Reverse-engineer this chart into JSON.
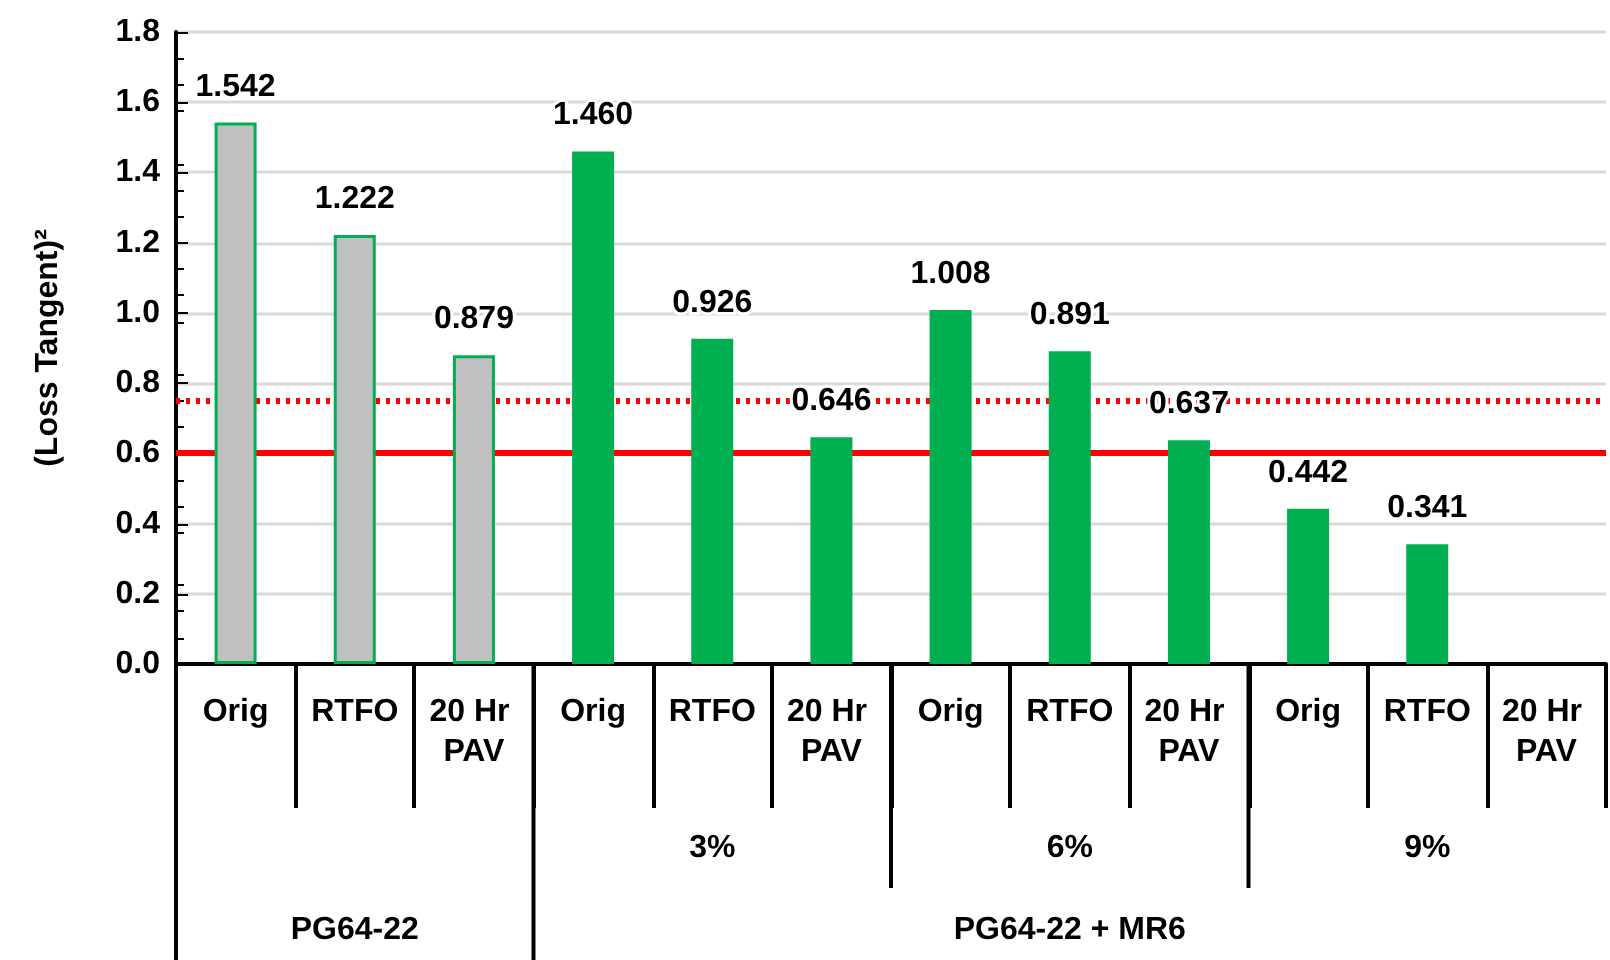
{
  "chart_data": {
    "type": "bar",
    "ylabel": "(Loss Tangent)²",
    "categories": [
      "Orig",
      "RTFO",
      "20 Hr PAV",
      "Orig",
      "RTFO",
      "20 Hr PAV",
      "Orig",
      "RTFO",
      "20 Hr PAV",
      "Orig",
      "RTFO",
      "20 Hr PAV"
    ],
    "values": [
      1.542,
      1.222,
      0.879,
      1.46,
      0.926,
      0.646,
      1.008,
      0.891,
      0.637,
      0.442,
      0.341,
      null
    ],
    "colors": [
      "#c0c0c0",
      "#c0c0c0",
      "#c0c0c0",
      "#00b050",
      "#00b050",
      "#00b050",
      "#00b050",
      "#00b050",
      "#00b050",
      "#00b050",
      "#00b050",
      "#00b050"
    ],
    "value_labels": [
      "1.542",
      "1.222",
      "0.879",
      "1.460",
      "0.926",
      "0.646",
      "1.008",
      "0.891",
      "0.637",
      "0.442",
      "0.341",
      null
    ],
    "ylim": [
      0,
      1.8
    ],
    "yticks": [
      {
        "value": 0,
        "label": "0.0"
      },
      {
        "value": 0.2,
        "label": "0.2"
      },
      {
        "value": 0.4,
        "label": "0.4"
      },
      {
        "value": 0.6,
        "label": "0.6"
      },
      {
        "value": 0.8,
        "label": "0.8"
      },
      {
        "value": 1,
        "label": "1.0"
      },
      {
        "value": 1.2,
        "label": "1.2"
      },
      {
        "value": 1.4,
        "label": "1.4"
      },
      {
        "value": 1.6,
        "label": "1.6"
      },
      {
        "value": 1.8,
        "label": "1.8"
      }
    ],
    "grid": "y",
    "ref_lines": [
      {
        "axis": "y",
        "value": 0.6,
        "color": "#ff0000",
        "line_style": "solid"
      },
      {
        "axis": "y",
        "value": 0.75,
        "color": "#ff0000",
        "line_style": "dotted"
      }
    ],
    "annotations": [
      "3%",
      "6%",
      "9%",
      "PG64-22",
      "PG64-22 + MR6"
    ]
  }
}
